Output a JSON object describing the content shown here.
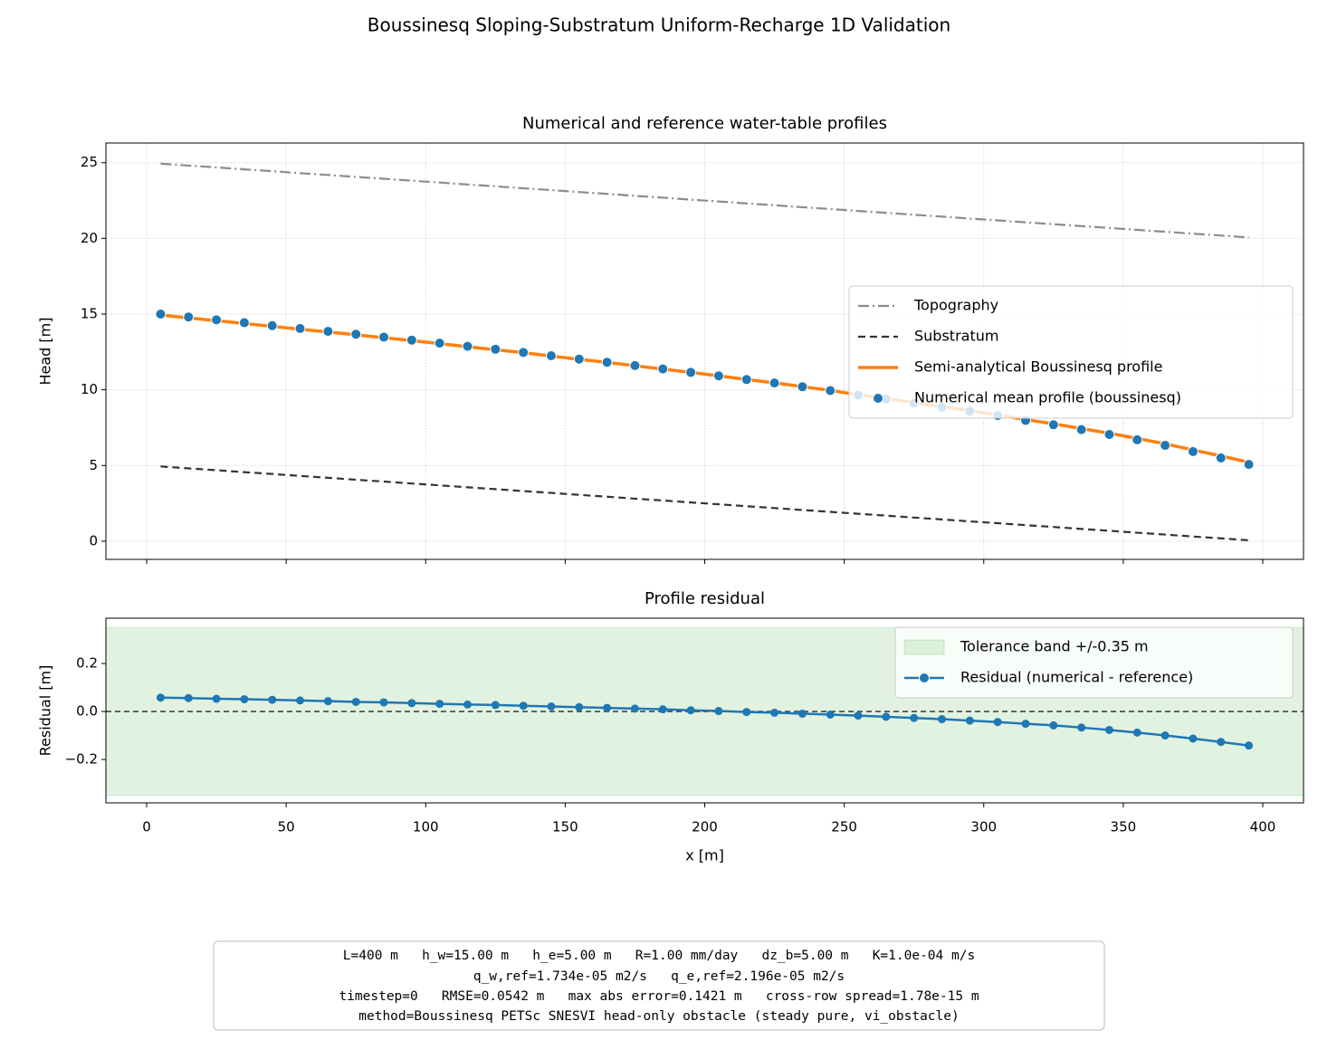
{
  "title": "Boussinesq Sloping-Substratum Uniform-Recharge 1D Validation",
  "chart_data": [
    {
      "type": "line",
      "title": "Numerical and reference water-table profiles",
      "y_label": "Head [m]",
      "xlim": [
        -14.6,
        414.6
      ],
      "xticks": [
        0,
        50,
        100,
        150,
        200,
        250,
        300,
        350,
        400
      ],
      "ylim": [
        -1.2,
        26.3
      ],
      "yticks": [
        0,
        5,
        10,
        15,
        20,
        25
      ],
      "grid": true,
      "legend": "center right",
      "x": [
        5,
        15,
        25,
        35,
        45,
        55,
        65,
        75,
        85,
        95,
        105,
        115,
        125,
        135,
        145,
        155,
        165,
        175,
        185,
        195,
        205,
        215,
        225,
        235,
        245,
        255,
        265,
        275,
        285,
        295,
        305,
        315,
        325,
        335,
        345,
        355,
        365,
        375,
        385,
        395
      ],
      "series": [
        {
          "name": "Topography",
          "color": "#8c8c8c",
          "linestyle": "dashdot",
          "marker": false,
          "values": [
            24.94,
            24.81,
            24.69,
            24.56,
            24.44,
            24.31,
            24.19,
            24.06,
            23.94,
            23.81,
            23.69,
            23.56,
            23.44,
            23.31,
            23.19,
            23.06,
            22.94,
            22.81,
            22.69,
            22.56,
            22.44,
            22.31,
            22.19,
            22.06,
            21.94,
            21.81,
            21.69,
            21.56,
            21.44,
            21.31,
            21.19,
            21.06,
            20.94,
            20.81,
            20.69,
            20.56,
            20.44,
            20.31,
            20.19,
            20.06
          ]
        },
        {
          "name": "Substratum",
          "color": "#333333",
          "linestyle": "dashed",
          "marker": false,
          "values": [
            4.94,
            4.81,
            4.69,
            4.56,
            4.44,
            4.31,
            4.19,
            4.06,
            3.94,
            3.81,
            3.69,
            3.56,
            3.44,
            3.31,
            3.19,
            3.06,
            2.94,
            2.81,
            2.69,
            2.56,
            2.44,
            2.31,
            2.19,
            2.06,
            1.94,
            1.81,
            1.69,
            1.56,
            1.44,
            1.31,
            1.19,
            1.06,
            0.94,
            0.81,
            0.69,
            0.56,
            0.44,
            0.31,
            0.19,
            0.06
          ]
        },
        {
          "name": "Semi-analytical Boussinesq profile",
          "color": "#ff7f0e",
          "linestyle": "solid",
          "marker": false,
          "values": [
            14.94,
            14.75,
            14.57,
            14.38,
            14.19,
            14.0,
            13.82,
            13.63,
            13.44,
            13.25,
            13.05,
            12.84,
            12.65,
            12.45,
            12.23,
            12.01,
            11.81,
            11.59,
            11.37,
            11.15,
            10.92,
            10.68,
            10.46,
            10.21,
            9.96,
            9.67,
            9.42,
            9.15,
            8.88,
            8.62,
            8.34,
            8.03,
            7.75,
            7.44,
            7.13,
            6.79,
            6.43,
            6.03,
            5.63,
            5.21
          ]
        },
        {
          "name": "Numerical mean profile (boussinesq)",
          "color": "#1f77b4",
          "linestyle": "none",
          "marker": true,
          "values": [
            15.0,
            14.81,
            14.62,
            14.43,
            14.24,
            14.05,
            13.86,
            13.67,
            13.48,
            13.28,
            13.08,
            12.87,
            12.68,
            12.47,
            12.25,
            12.03,
            11.82,
            11.6,
            11.38,
            11.15,
            10.92,
            10.68,
            10.45,
            10.2,
            9.95,
            9.65,
            9.4,
            9.12,
            8.85,
            8.58,
            8.3,
            7.98,
            7.69,
            7.37,
            7.05,
            6.7,
            6.33,
            5.92,
            5.5,
            5.07
          ]
        }
      ]
    },
    {
      "type": "line",
      "title": "Profile residual",
      "y_label": "Residual [m]",
      "x_label": "x [m]",
      "xlim": [
        -14.6,
        414.6
      ],
      "xticks": [
        0,
        50,
        100,
        150,
        200,
        250,
        300,
        350,
        400
      ],
      "ylim": [
        -0.381,
        0.389
      ],
      "yticks": [
        {
          "value": -0.2,
          "label": "−0.2"
        },
        {
          "value": 0,
          "label": "0.0"
        },
        0.2
      ],
      "grid": false,
      "legend": "upper right",
      "hline": 0,
      "bands": [
        {
          "name": "Tolerance band +/-0.35 m",
          "color": "#2ca02c",
          "lower": -0.35,
          "upper": 0.35
        }
      ],
      "x": [
        5,
        15,
        25,
        35,
        45,
        55,
        65,
        75,
        85,
        95,
        105,
        115,
        125,
        135,
        145,
        155,
        165,
        175,
        185,
        195,
        205,
        215,
        225,
        235,
        245,
        255,
        265,
        275,
        285,
        295,
        305,
        315,
        325,
        335,
        345,
        355,
        365,
        375,
        385,
        395
      ],
      "series": [
        {
          "name": "Residual (numerical - reference)",
          "color": "#1f77b4",
          "linestyle": "solid",
          "marker": true,
          "values": [
            0.058,
            0.056,
            0.053,
            0.051,
            0.049,
            0.046,
            0.043,
            0.04,
            0.038,
            0.035,
            0.032,
            0.029,
            0.027,
            0.024,
            0.021,
            0.018,
            0.015,
            0.012,
            0.009,
            0.005,
            0.002,
            -0.002,
            -0.005,
            -0.009,
            -0.013,
            -0.017,
            -0.022,
            -0.027,
            -0.032,
            -0.038,
            -0.044,
            -0.051,
            -0.058,
            -0.067,
            -0.077,
            -0.088,
            -0.1,
            -0.113,
            -0.127,
            -0.142
          ]
        }
      ]
    }
  ],
  "footnote": [
    "L=400 m   h_w=15.00 m   h_e=5.00 m   R=1.00 mm/day   dz_b=5.00 m   K=1.0e-04 m/s",
    "q_w,ref=1.734e-05 m2/s   q_e,ref=2.196e-05 m2/s",
    "timestep=0   RMSE=0.0542 m   max abs error=0.1421 m   cross-row spread=1.78e-15 m",
    "method=Boussinesq PETSc SNESVI head-only obstacle (steady pure, vi_obstacle)"
  ]
}
